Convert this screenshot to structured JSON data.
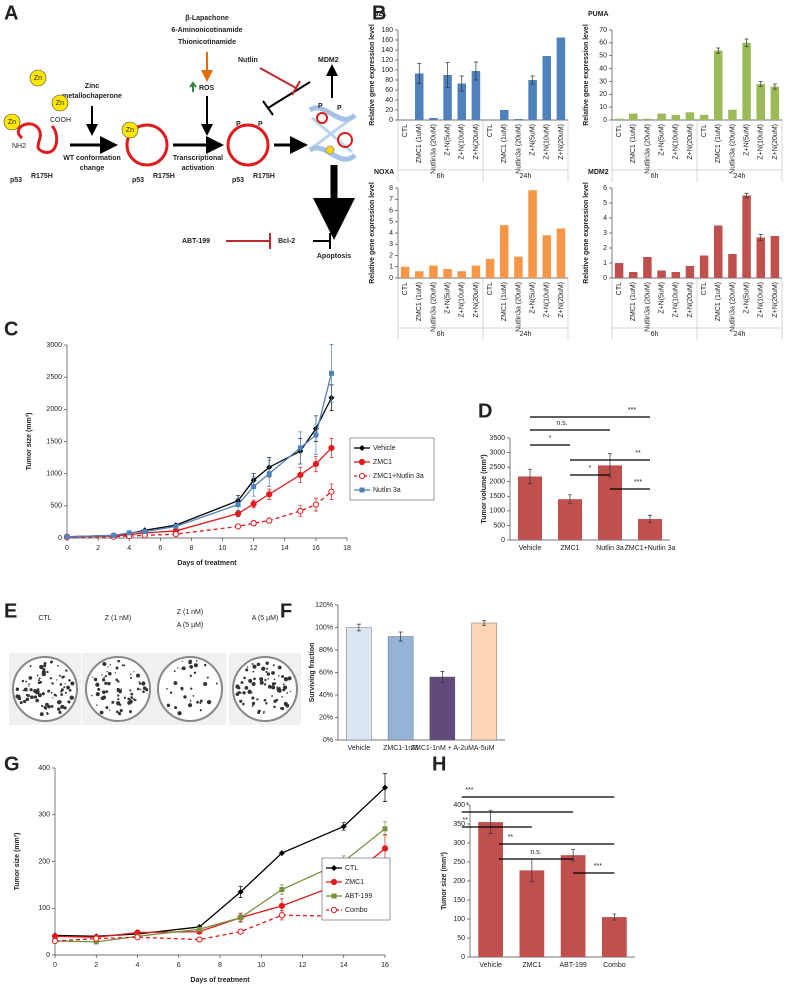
{
  "panel_labels": [
    "A",
    "B",
    "C",
    "D",
    "E",
    "F",
    "G",
    "H"
  ],
  "diagram": {
    "inducers": [
      "β-Lapachone",
      "6-Aminonicotinamide",
      "Thionicotinamide"
    ],
    "zmc": [
      "Zinc",
      "metallochaperone"
    ],
    "wt_change": [
      "WT conformation",
      "change"
    ],
    "ros": "ROS",
    "transcription": [
      "Transcriptional",
      "activation"
    ],
    "p53": "p53",
    "mutant": "R175H",
    "zn": "Zn",
    "cooh": "COOH",
    "nh2": "NH2",
    "phospho": "P",
    "nutlin": "Nutlin",
    "mdm2": "MDM2",
    "abt": "ABT-199",
    "bcl2": "Bcl-2",
    "apoptosis": "Apoptosis"
  },
  "plates": {
    "labels": [
      [
        "CTL"
      ],
      [
        "Z (1 nM)"
      ],
      [
        "Z (1 nM)",
        "A (5 µM)"
      ],
      [
        "A (5 µM)"
      ]
    ]
  },
  "chart_data": [
    {
      "type": "bar",
      "title": "p21",
      "ylabel": "Relative gene expression level",
      "color": "#4f81bd",
      "categories": [
        "CTL",
        "ZMC1 (1uM)",
        "Nutlin3a (20uM)",
        "Z+N(5uM)",
        "Z+N(10uM)",
        "Z+N(20uM)",
        "CTL",
        "ZMC1 (1uM)",
        "Nutlin3a (20uM)",
        "Z+N(5uM)",
        "Z+N(10uM)",
        "Z+N(20uM)"
      ],
      "groups": [
        "6h",
        "24h"
      ],
      "values": [
        1,
        93,
        4,
        90,
        73,
        98,
        1,
        20,
        2,
        80,
        128,
        165
      ],
      "errors": [
        0,
        20,
        0,
        25,
        15,
        18,
        0,
        0,
        0,
        8,
        0,
        0
      ],
      "ylim": [
        0,
        180
      ],
      "yticks": [
        0,
        20,
        40,
        60,
        80,
        100,
        120,
        140,
        160,
        180
      ]
    },
    {
      "type": "bar",
      "title": "PUMA",
      "ylabel": "Relative gene expression level",
      "color": "#9bbb59",
      "categories": [
        "CTL",
        "ZMC1 (1uM)",
        "Nutlin3a (20uM)",
        "Z+N(5uM)",
        "Z+N(10uM)",
        "Z+N(20uM)",
        "CTL",
        "ZMC1 (1uM)",
        "Nutlin3a (20uM)",
        "Z+N(5uM)",
        "Z+N(10uM)",
        "Z+N(20uM)"
      ],
      "groups": [
        "6h",
        "24h"
      ],
      "values": [
        1,
        5,
        1,
        5,
        4,
        6,
        4,
        54,
        8,
        60,
        28,
        26
      ],
      "errors": [
        0,
        0,
        0,
        0,
        0,
        0,
        0,
        2,
        0,
        3,
        2,
        2
      ],
      "ylim": [
        0,
        70
      ],
      "yticks": [
        0,
        10,
        20,
        30,
        40,
        50,
        60,
        70
      ]
    },
    {
      "type": "bar",
      "title": "NOXA",
      "ylabel": "Relative gene expression level",
      "color": "#f79646",
      "categories": [
        "CTL",
        "ZMC1 (1uM)",
        "Nutlin3a (20uM)",
        "Z+N(5uM)",
        "Z+N(10uM)",
        "Z+N(20uM)",
        "CTL",
        "ZMC1 (1uM)",
        "Nutlin3a (20uM)",
        "Z+N(5uM)",
        "Z+N(10uM)",
        "Z+N(20uM)"
      ],
      "groups": [
        "6h",
        "24h"
      ],
      "values": [
        1,
        0.6,
        1.1,
        0.8,
        0.6,
        1.1,
        1.7,
        4.7,
        1.9,
        7.8,
        3.8,
        4.4
      ],
      "ylim": [
        0,
        8
      ],
      "yticks": [
        0,
        1,
        2,
        3,
        4,
        5,
        6,
        7,
        8
      ]
    },
    {
      "type": "bar",
      "title": "MDM2",
      "ylabel": "Relative gene expression level",
      "color": "#c0504d",
      "categories": [
        "CTL",
        "ZMC1 (1uM)",
        "Nutlin3a (20uM)",
        "Z+N(5uM)",
        "Z+N(10uM)",
        "Z+N(20uM)",
        "CTL",
        "ZMC1 (1uM)",
        "Nutlin3a (20uM)",
        "Z+N(5uM)",
        "Z+N(10uM)",
        "Z+N(20uM)"
      ],
      "groups": [
        "6h",
        "24h"
      ],
      "values": [
        1,
        0.4,
        1.4,
        0.5,
        0.4,
        0.8,
        1.5,
        3.5,
        1.6,
        5.5,
        2.7,
        2.8
      ],
      "errors": [
        0,
        0,
        0,
        0,
        0,
        0,
        0,
        0,
        0,
        0.15,
        0.2,
        0
      ],
      "ylim": [
        0,
        6
      ],
      "yticks": [
        0,
        1,
        2,
        3,
        4,
        5,
        6
      ]
    },
    {
      "type": "line",
      "ylabel": "Tumor size (mm³)",
      "xlabel": "Days of treatment",
      "x": [
        0,
        3,
        4,
        5,
        7,
        11,
        12,
        13,
        15,
        16,
        17
      ],
      "series": [
        {
          "name": "Vehicle",
          "color": "#000000",
          "marker": "diamond",
          "values": [
            20,
            40,
            70,
            120,
            200,
            580,
            900,
            1100,
            1350,
            1700,
            2180
          ],
          "errors": [
            0,
            0,
            0,
            0,
            0,
            80,
            100,
            150,
            200,
            200,
            200
          ]
        },
        {
          "name": "ZMC1",
          "color": "#e31a1c",
          "marker": "circle",
          "values": [
            20,
            30,
            50,
            80,
            110,
            380,
            530,
            680,
            980,
            1150,
            1400
          ],
          "errors": [
            0,
            0,
            0,
            0,
            0,
            50,
            60,
            80,
            120,
            120,
            150
          ]
        },
        {
          "name": "ZMC1+Nutlin 3a",
          "color": "#e31a1c",
          "marker": "circle-open",
          "dashed": true,
          "values": [
            10,
            20,
            30,
            40,
            60,
            180,
            230,
            270,
            420,
            520,
            720
          ],
          "errors": [
            0,
            0,
            0,
            0,
            0,
            30,
            40,
            40,
            80,
            100,
            120
          ]
        },
        {
          "name": "Nutlin 3a",
          "color": "#4f81bd",
          "marker": "square",
          "values": [
            20,
            40,
            80,
            100,
            180,
            520,
            800,
            1000,
            1400,
            1600,
            2560
          ],
          "errors": [
            0,
            0,
            0,
            0,
            0,
            100,
            150,
            200,
            250,
            300,
            450
          ]
        }
      ],
      "xlim": [
        0,
        18
      ],
      "xticks": [
        0,
        2,
        4,
        6,
        8,
        10,
        12,
        14,
        16,
        18
      ],
      "ylim": [
        0,
        3000
      ],
      "yticks": [
        0,
        500,
        1000,
        1500,
        2000,
        2500,
        3000
      ],
      "legend": "right"
    },
    {
      "type": "bar",
      "ylabel": "Tumor volume (mm³)",
      "color": "#c0504d",
      "categories": [
        "Vehicle",
        "ZMC1",
        "Nutlin 3a",
        "ZMC1+Nutlin 3a"
      ],
      "values": [
        2180,
        1400,
        2560,
        720
      ],
      "errors": [
        250,
        150,
        400,
        130
      ],
      "ylim": [
        0,
        3500
      ],
      "yticks": [
        0,
        500,
        1000,
        1500,
        2000,
        2500,
        3000,
        3500
      ],
      "annotations": [
        "***",
        "n.s.",
        "*",
        "**",
        "*",
        "***"
      ]
    },
    {
      "type": "bar",
      "ylabel": "Surviving fraction",
      "colors": [
        "#dce6f2",
        "#95b3d7",
        "#604a7b",
        "#fcd5b5"
      ],
      "categories": [
        "Vehicle",
        "ZMC1-1nM",
        "ZMC1-1nM + A-2uM",
        "A-5uM"
      ],
      "values": [
        100,
        92,
        56,
        104
      ],
      "errors": [
        3,
        4,
        5,
        2
      ],
      "ylim": [
        0,
        120
      ],
      "yticks": [
        {
          "value": 0,
          "label": "0%"
        },
        {
          "value": 20,
          "label": "20%"
        },
        {
          "value": 40,
          "label": "40%"
        },
        {
          "value": 60,
          "label": "60%"
        },
        {
          "value": 80,
          "label": "80%"
        },
        {
          "value": 100,
          "label": "100%"
        },
        {
          "value": 120,
          "label": "120%"
        }
      ]
    },
    {
      "type": "line",
      "ylabel": "Tumor size (mm³)",
      "xlabel": "Days of treatment",
      "x": [
        0,
        2,
        4,
        7,
        9,
        11,
        14,
        16
      ],
      "series": [
        {
          "name": "CTL",
          "color": "#000000",
          "marker": "diamond",
          "values": [
            42,
            40,
            45,
            60,
            135,
            218,
            275,
            358
          ],
          "errors": [
            0,
            0,
            0,
            0,
            12,
            0,
            8,
            30
          ]
        },
        {
          "name": "ZMC1",
          "color": "#e31a1c",
          "marker": "circle",
          "values": [
            40,
            38,
            48,
            50,
            80,
            105,
            155,
            228
          ],
          "errors": [
            0,
            0,
            5,
            0,
            8,
            15,
            15,
            30
          ]
        },
        {
          "name": "ABT-199",
          "color": "#77933c",
          "marker": "square",
          "values": [
            30,
            28,
            40,
            55,
            80,
            140,
            200,
            270
          ],
          "errors": [
            0,
            0,
            0,
            0,
            10,
            10,
            12,
            15
          ]
        },
        {
          "name": "Combo",
          "color": "#e31a1c",
          "marker": "circle-open",
          "dashed": true,
          "values": [
            30,
            35,
            38,
            33,
            50,
            85,
            83,
            107
          ],
          "errors": [
            0,
            0,
            0,
            0,
            0,
            10,
            0,
            5
          ]
        }
      ],
      "xlim": [
        0,
        16
      ],
      "xticks": [
        0,
        2,
        4,
        6,
        8,
        10,
        12,
        14,
        16
      ],
      "ylim": [
        0,
        400
      ],
      "yticks": [
        0,
        100,
        200,
        300,
        400
      ],
      "legend": "right"
    },
    {
      "type": "bar",
      "ylabel": "Tumor size (mm³)",
      "color": "#c0504d",
      "categories": [
        "Vehicle",
        "ZMC1",
        "ABT-199",
        "Combo"
      ],
      "values": [
        355,
        228,
        268,
        105
      ],
      "errors": [
        30,
        30,
        15,
        8
      ],
      "ylim": [
        0,
        400
      ],
      "yticks": [
        0,
        50,
        100,
        150,
        200,
        250,
        300,
        350,
        400
      ],
      "annotations": [
        "***",
        "*",
        "**",
        "**",
        "n.s.",
        "***"
      ]
    }
  ]
}
